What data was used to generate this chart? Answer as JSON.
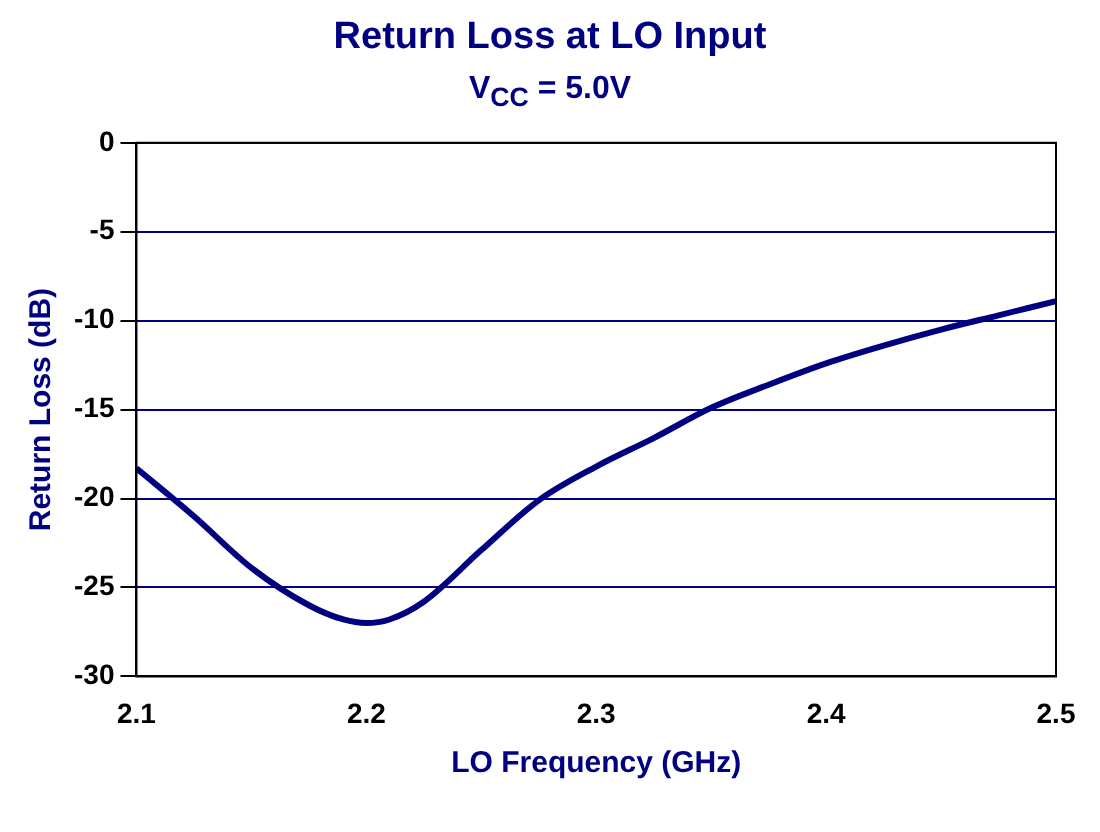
{
  "chart_data": {
    "type": "line",
    "title": "Return Loss at LO Input",
    "subtitle": "V$_{CC}$ = 5.0V",
    "xlabel": "LO Frequency (GHz)",
    "ylabel": "Return Loss (dB)",
    "x": [
      2.1,
      2.125,
      2.15,
      2.175,
      2.19,
      2.2,
      2.21,
      2.225,
      2.25,
      2.275,
      2.3,
      2.325,
      2.35,
      2.375,
      2.4,
      2.425,
      2.45,
      2.475,
      2.5
    ],
    "series": [
      {
        "color": "#000080",
        "values": [
          -18.3,
          -21.0,
          -23.9,
          -26.0,
          -26.8,
          -27.0,
          -26.8,
          -25.8,
          -22.9,
          -20.1,
          -18.2,
          -16.6,
          -14.9,
          -13.6,
          -12.4,
          -11.4,
          -10.5,
          -9.7,
          -8.9
        ]
      }
    ],
    "xlim": [
      2.1,
      2.5
    ],
    "xticks": [
      2.1,
      2.2,
      2.3,
      2.4,
      2.5
    ],
    "ylim": [
      -30,
      0
    ],
    "yticks": [
      -30,
      -25,
      -20,
      -15,
      -10,
      -5,
      0
    ],
    "grid": "y",
    "marker": "none",
    "line_style": "solid"
  }
}
